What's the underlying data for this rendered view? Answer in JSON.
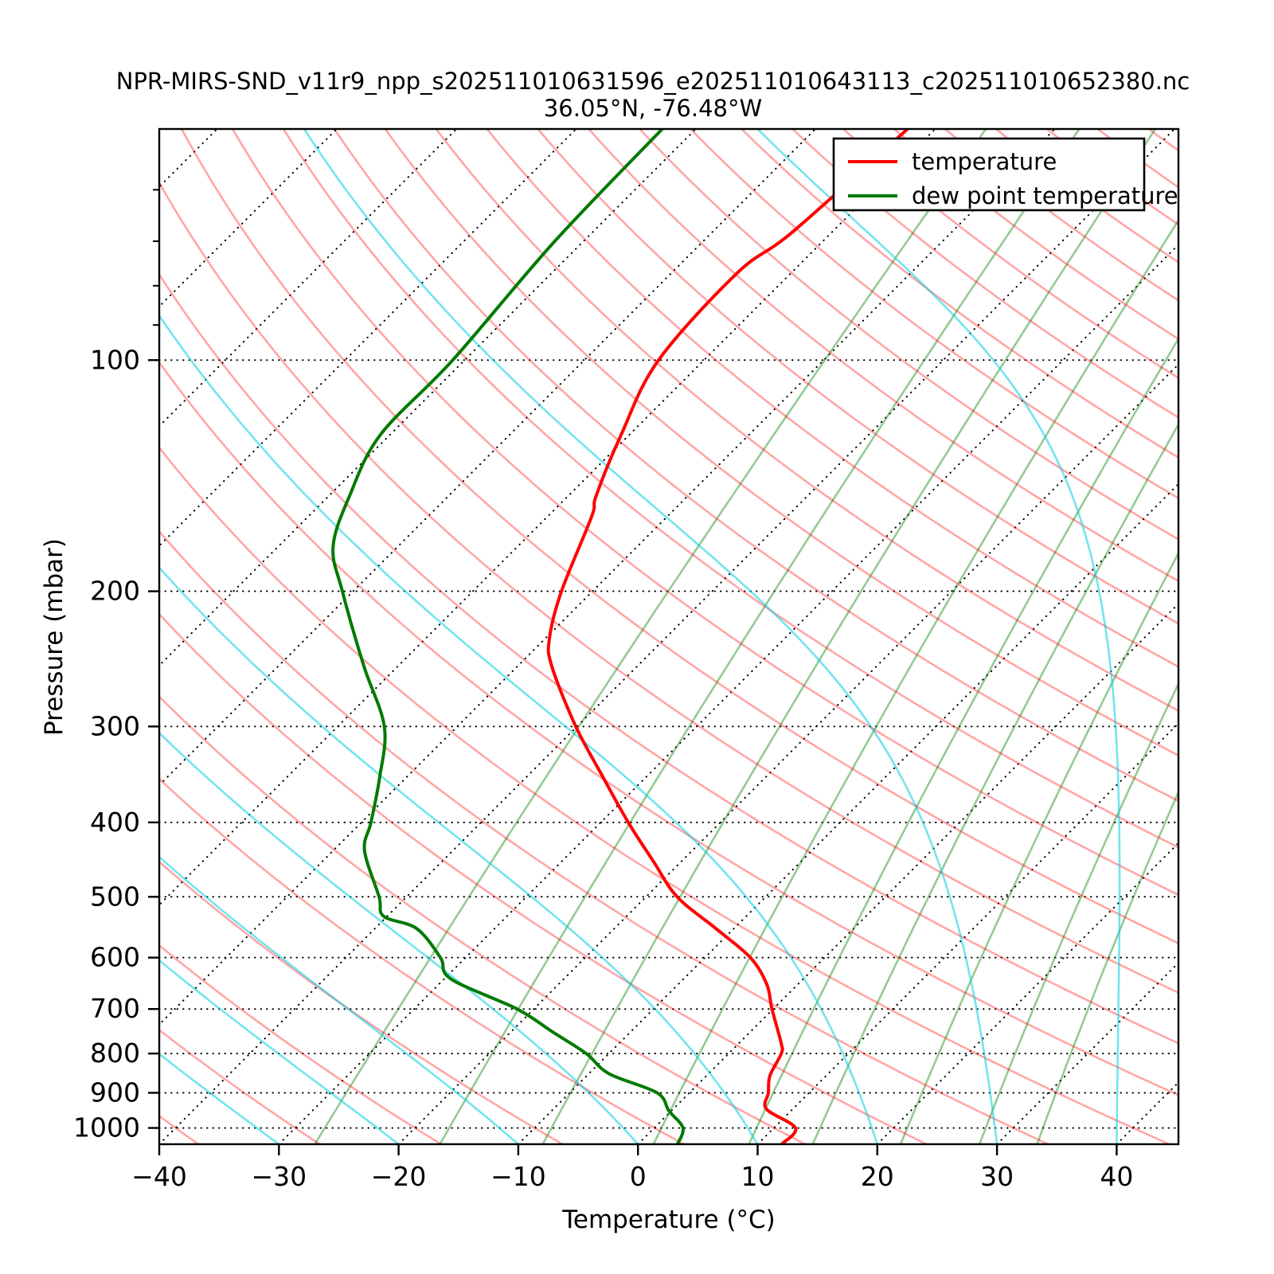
{
  "title": "NPR-MIRS-SND_v11r9_npp_s202511010631596_e202511010643113_c202511010652380.nc",
  "subtitle": "36.05°N, -76.48°W",
  "legend": {
    "items": [
      {
        "label": "temperature",
        "color": "#ff0000"
      },
      {
        "label": "dew point temperature",
        "color": "#007a00"
      }
    ]
  },
  "chart_data": {
    "type": "line",
    "variant": "skew-t-log-p",
    "title": "NPR-MIRS-SND_v11r9_npp_s202511010631596_e202511010643113_c202511010652380.nc",
    "subtitle": "36.05°N, -76.48°W",
    "xlabel": "Temperature (°C)",
    "ylabel": "Pressure (mbar)",
    "xlim": [
      -40,
      45
    ],
    "ylim": [
      1050,
      50
    ],
    "y_scale": "log",
    "skew_deg": 45,
    "x_ticks": [
      -40,
      -30,
      -20,
      -10,
      0,
      10,
      20,
      30,
      40
    ],
    "x_tick_labels": [
      "−40",
      "−30",
      "−20",
      "−10",
      "0",
      "10",
      "20",
      "30",
      "40"
    ],
    "y_ticks": [
      100,
      200,
      300,
      400,
      500,
      600,
      700,
      800,
      900,
      1000
    ],
    "y_minor_ticks": [
      60,
      70,
      80,
      90
    ],
    "legend_position": "upper right",
    "series": [
      {
        "name": "temperature",
        "color": "#ff0000",
        "units": {
          "pressure": "mbar",
          "temperature": "C"
        },
        "points": [
          [
            1050,
            12.0
          ],
          [
            1000,
            11.8
          ],
          [
            945,
            7.8
          ],
          [
            900,
            6.6
          ],
          [
            855,
            5.3
          ],
          [
            800,
            4.4
          ],
          [
            775,
            3.5
          ],
          [
            700,
            -0.1
          ],
          [
            650,
            -2.6
          ],
          [
            600,
            -6.2
          ],
          [
            550,
            -11.5
          ],
          [
            500,
            -17.4
          ],
          [
            450,
            -22.3
          ],
          [
            400,
            -27.7
          ],
          [
            350,
            -33.5
          ],
          [
            300,
            -40.1
          ],
          [
            250,
            -47.2
          ],
          [
            230,
            -49.7
          ],
          [
            200,
            -52.6
          ],
          [
            160,
            -56.3
          ],
          [
            150,
            -57.7
          ],
          [
            125,
            -60.7
          ],
          [
            100,
            -63.8
          ],
          [
            77,
            -64.5
          ],
          [
            68,
            -63.3
          ],
          [
            50,
            -62.3
          ]
        ]
      },
      {
        "name": "dew point temperature",
        "color": "#007a00",
        "units": {
          "pressure": "mbar",
          "temperature": "C"
        },
        "points": [
          [
            1050,
            3.3
          ],
          [
            1000,
            2.4
          ],
          [
            950,
            -0.2
          ],
          [
            900,
            -2.7
          ],
          [
            850,
            -8.3
          ],
          [
            800,
            -11.9
          ],
          [
            750,
            -16.5
          ],
          [
            700,
            -21.4
          ],
          [
            640,
            -29.4
          ],
          [
            600,
            -32.1
          ],
          [
            550,
            -36.5
          ],
          [
            530,
            -40.3
          ],
          [
            500,
            -42.3
          ],
          [
            435,
            -47.4
          ],
          [
            400,
            -49.2
          ],
          [
            350,
            -52.2
          ],
          [
            300,
            -56.1
          ],
          [
            250,
            -62.9
          ],
          [
            200,
            -70.9
          ],
          [
            175,
            -75.4
          ],
          [
            150,
            -78.3
          ],
          [
            125,
            -80.8
          ],
          [
            100,
            -81.0
          ],
          [
            70,
            -82.4
          ],
          [
            50,
            -82.8
          ]
        ]
      }
    ],
    "background": {
      "isobars_mbar": [
        100,
        200,
        300,
        400,
        500,
        600,
        700,
        800,
        900,
        1000
      ],
      "isotherms_c": {
        "min": -120,
        "max": 40,
        "step": 10
      },
      "dry_adiabats_theta_c": {
        "min": -40,
        "max": 280,
        "step": 10
      },
      "moist_adiabats_start_c": {
        "min": -40,
        "max": 90,
        "step": 10
      },
      "mixing_ratio_g_kg": [
        0.4,
        1,
        2,
        4,
        7,
        10,
        16,
        24,
        32
      ],
      "colors": {
        "isobar": "#000000",
        "isotherm": "#000000",
        "dry_adiabat": "rgba(255,0,0,0.35)",
        "moist_adiabat": "rgba(0,205,225,0.55)",
        "mixing_ratio": "rgba(0,128,0,0.42)"
      }
    }
  }
}
